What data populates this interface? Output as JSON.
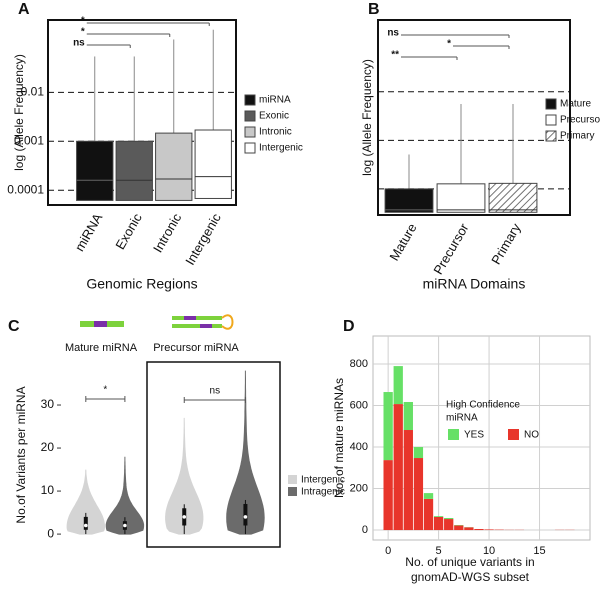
{
  "chart_data": [
    {
      "type": "box",
      "panel": "A",
      "y_label": "log (Allele Frequency)",
      "x_label": "Genomic Regions",
      "log_scale": true,
      "categories": [
        "miRNA",
        "Exonic",
        "Intronic",
        "Intergenic"
      ],
      "colors": [
        "#111111",
        "#5a5a5a",
        "#c8c8c8",
        "#ffffff"
      ],
      "q1": [
        6.2e-05,
        6.2e-05,
        6.2e-05,
        6.8e-05
      ],
      "median": [
        0.00016,
        0.00016,
        0.00017,
        0.00019
      ],
      "q3": [
        0.001,
        0.001,
        0.00147,
        0.0017
      ],
      "max": [
        0.054,
        0.054,
        0.12,
        0.19
      ],
      "ylim": [
        5e-05,
        0.3
      ],
      "yticks": [
        0.0001,
        0.001,
        0.01
      ],
      "grid": "dashed",
      "legend": "right",
      "comparisons": [
        {
          "label": "*",
          "groups": [
            "miRNA",
            "Intergenic"
          ]
        },
        {
          "label": "*",
          "groups": [
            "miRNA",
            "Intronic"
          ]
        },
        {
          "label": "ns",
          "groups": [
            "miRNA",
            "Exonic"
          ]
        }
      ]
    },
    {
      "type": "box",
      "panel": "B",
      "y_label": "log (Allele Frequency)",
      "x_label": "miRNA Domains",
      "log_scale": true,
      "categories": [
        "Mature",
        "Precursor",
        "Primary"
      ],
      "colors": [
        "#111111",
        "#ffffff",
        "hatched"
      ],
      "q1": [
        3.3e-05,
        3.3e-05,
        3.3e-05
      ],
      "median": [
        3.7e-05,
        3.7e-05,
        3.7e-05
      ],
      "q3": [
        0.0001,
        0.000127,
        0.00013
      ],
      "max": [
        0.00051,
        0.0056,
        0.0056
      ],
      "ylim": [
        2.9e-05,
        0.3
      ],
      "dashed_lines": [
        0.0001,
        0.001,
        0.01
      ],
      "legend": "right",
      "comparisons": [
        {
          "label": "ns",
          "groups": [
            "Mature",
            "Primary"
          ]
        },
        {
          "label": "*",
          "groups": [
            "Precursor",
            "Primary"
          ]
        },
        {
          "label": "**",
          "groups": [
            "Mature",
            "Precursor"
          ]
        }
      ]
    },
    {
      "type": "violin",
      "panel": "C",
      "y_label": "No.of Variants per miRNA",
      "facets": [
        "Mature miRNA",
        "Precursor miRNA"
      ],
      "series": [
        {
          "name": "Intergenic",
          "color": "#d4d4d4",
          "min": [
            0,
            0
          ],
          "q1": [
            1,
            2
          ],
          "median": [
            2,
            4
          ],
          "q3": [
            4,
            6
          ],
          "max": [
            15,
            27
          ]
        },
        {
          "name": "Intragenic",
          "color": "#6b6b6b",
          "min": [
            0,
            0
          ],
          "q1": [
            1,
            2
          ],
          "median": [
            2,
            4
          ],
          "q3": [
            3,
            7
          ],
          "max": [
            18,
            38
          ]
        }
      ],
      "ylim": [
        -3,
        40
      ],
      "yticks": [
        0,
        10,
        20,
        30
      ],
      "legend": "right",
      "comparisons": [
        "*",
        "ns"
      ]
    },
    {
      "type": "stacked-histogram",
      "panel": "D",
      "y_label": "No. of mature miRNAs",
      "x_label": [
        "No. of unique variants in",
        "gnomAD-WGS subset"
      ],
      "legend_title": [
        "High Confidence",
        "miRNA"
      ],
      "x": [
        0,
        1,
        2,
        3,
        4,
        5,
        6,
        7,
        8,
        9,
        10,
        11,
        12,
        13,
        14,
        15,
        16,
        17,
        18
      ],
      "series": [
        {
          "name": "YES",
          "color": "#66e066",
          "values": [
            328,
            183,
            135,
            53,
            28,
            4,
            5,
            2,
            1,
            0,
            0,
            0,
            0,
            0,
            0,
            0,
            0,
            0,
            0
          ]
        },
        {
          "name": "NO",
          "color": "#e8352b",
          "values": [
            337,
            607,
            482,
            347,
            150,
            63,
            53,
            22,
            13,
            5,
            3,
            2,
            1,
            1,
            0,
            0,
            0,
            1,
            1
          ]
        }
      ],
      "xlim": [
        -1.5,
        20
      ],
      "ylim": [
        -48,
        935
      ],
      "xticks": [
        0,
        5,
        10,
        15
      ],
      "yticks": [
        0,
        200,
        400,
        600,
        800
      ],
      "grid": true
    }
  ]
}
